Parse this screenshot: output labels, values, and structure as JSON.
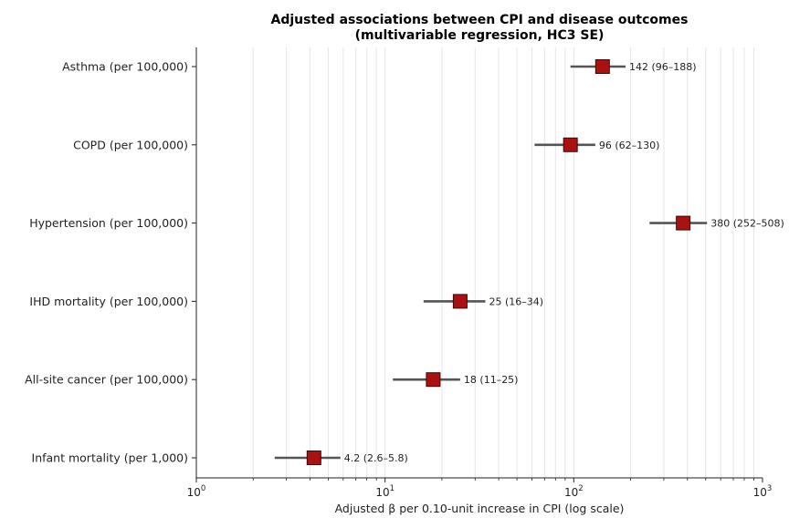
{
  "chart_data": {
    "type": "scatter",
    "subtype": "forest-plot-horizontal",
    "title_line1": "Adjusted associations between CPI and disease outcomes",
    "title_line2": "(multivariable regression, HC3 SE)",
    "xlabel": "Adjusted β per 0.10-unit increase in CPI (log scale)",
    "xscale": "log",
    "xlim": [
      1,
      1000
    ],
    "x_ticks": [
      {
        "value": 1,
        "base": "10",
        "exp": "0"
      },
      {
        "value": 10,
        "base": "10",
        "exp": "1"
      },
      {
        "value": 100,
        "base": "10",
        "exp": "2"
      },
      {
        "value": 1000,
        "base": "10",
        "exp": "3"
      }
    ],
    "grid": "vertical, major and minor",
    "marker_color": "#aa1111",
    "whisker_color": "#555555",
    "rows": [
      {
        "category": "Asthma (per 100,000)",
        "estimate": 142,
        "ci_low": 96,
        "ci_high": 188,
        "label": "142 (96–188)"
      },
      {
        "category": "COPD (per 100,000)",
        "estimate": 96,
        "ci_low": 62,
        "ci_high": 130,
        "label": "96 (62–130)"
      },
      {
        "category": "Hypertension (per 100,000)",
        "estimate": 380,
        "ci_low": 252,
        "ci_high": 508,
        "label": "380 (252–508)"
      },
      {
        "category": "IHD mortality (per 100,000)",
        "estimate": 25,
        "ci_low": 16,
        "ci_high": 34,
        "label": "25 (16–34)"
      },
      {
        "category": "All-site cancer (per 100,000)",
        "estimate": 18,
        "ci_low": 11,
        "ci_high": 25,
        "label": "18 (11–25)"
      },
      {
        "category": "Infant mortality (per 1,000)",
        "estimate": 4.2,
        "ci_low": 2.6,
        "ci_high": 5.8,
        "label": "4.2 (2.6–5.8)"
      }
    ]
  }
}
